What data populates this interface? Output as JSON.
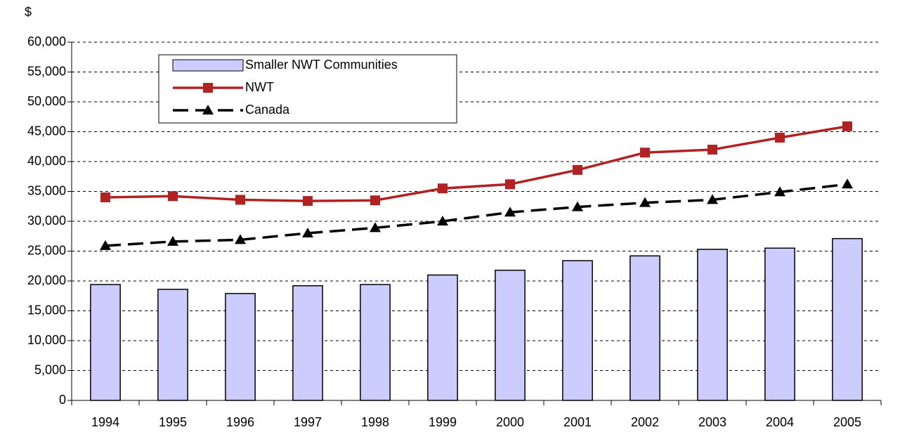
{
  "chart_data": {
    "type": "combo",
    "y_label": "$",
    "categories": [
      "1994",
      "1995",
      "1996",
      "1997",
      "1998",
      "1999",
      "2000",
      "2001",
      "2002",
      "2003",
      "2004",
      "2005"
    ],
    "series": [
      {
        "name": "Smaller NWT Communities",
        "type": "bar",
        "color": "#ccccff",
        "values": [
          19400,
          18600,
          17900,
          19200,
          19400,
          21000,
          21800,
          23400,
          24200,
          25300,
          25500,
          27100
        ]
      },
      {
        "name": "NWT",
        "type": "line",
        "color": "#b22222",
        "marker": "square",
        "dashed": false,
        "values": [
          34000,
          34200,
          33600,
          33400,
          33500,
          35500,
          36200,
          38600,
          41500,
          42000,
          44000,
          45900
        ]
      },
      {
        "name": "Canada",
        "type": "line",
        "color": "#000000",
        "marker": "triangle",
        "dashed": true,
        "values": [
          25900,
          26600,
          26900,
          28000,
          28900,
          30000,
          31500,
          32400,
          33100,
          33600,
          34900,
          36200
        ]
      }
    ],
    "ylim": [
      0,
      60000
    ],
    "yticks": [
      0,
      {
        "value": 5000,
        "label": "5,000"
      },
      {
        "value": 10000,
        "label": "10,000"
      },
      {
        "value": 15000,
        "label": "15,000"
      },
      {
        "value": 20000,
        "label": "20,000"
      },
      {
        "value": 25000,
        "label": "25,000"
      },
      {
        "value": 30000,
        "label": "30,000"
      },
      {
        "value": 35000,
        "label": "35,000"
      },
      {
        "value": 40000,
        "label": "40,000"
      },
      {
        "value": 45000,
        "label": "45,000"
      },
      {
        "value": 50000,
        "label": "50,000"
      },
      {
        "value": 55000,
        "label": "55,000"
      },
      {
        "value": 60000,
        "label": "60,000"
      }
    ],
    "grid": true,
    "legend": "top-left"
  }
}
